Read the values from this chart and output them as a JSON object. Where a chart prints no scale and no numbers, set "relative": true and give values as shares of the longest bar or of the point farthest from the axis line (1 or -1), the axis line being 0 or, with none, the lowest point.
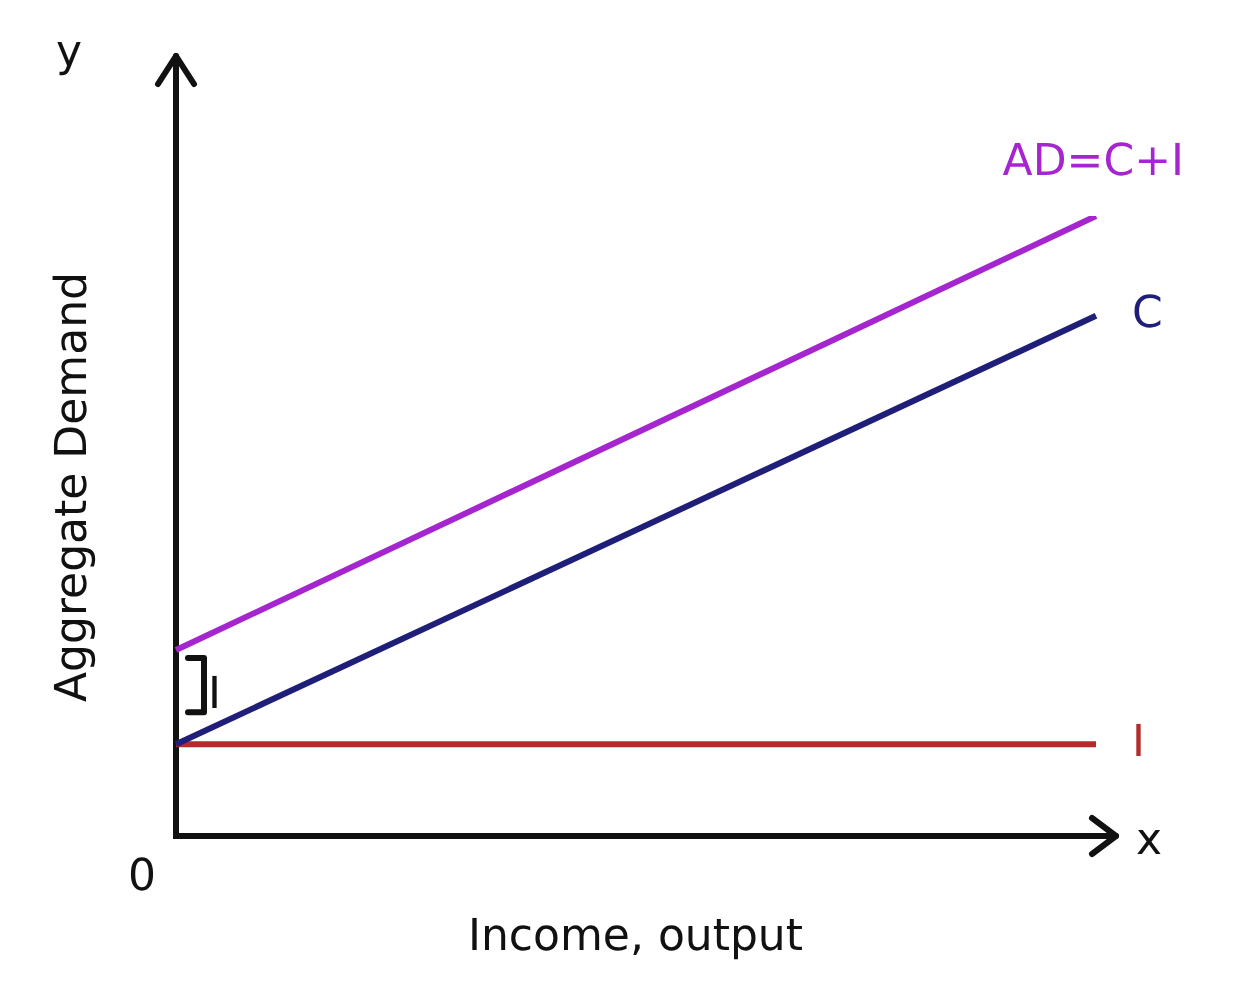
{
  "chart_data": {
    "type": "line",
    "relative": true,
    "xlabel": "Income, output",
    "ylabel": "Aggregate Demand",
    "categories": [
      null,
      null
    ],
    "series": [
      {
        "name": "AD=C+I",
        "color": "#a526cf",
        "values": [
          0.3,
          1
        ]
      },
      {
        "name": "C",
        "color": "#1f1f7a",
        "values": [
          0.148,
          0.839
        ]
      },
      {
        "name": "I",
        "color": "#b52a2a",
        "values": [
          0.148,
          0.148
        ]
      }
    ],
    "annotations": [
      "y",
      "x",
      "0",
      "I"
    ],
    "marker": "none",
    "line_style": "solid",
    "grid": false,
    "legend": false
  }
}
